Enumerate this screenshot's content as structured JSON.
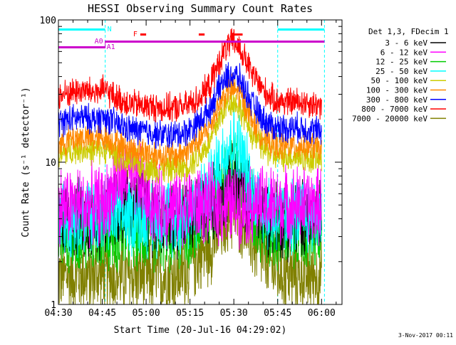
{
  "chart_data": {
    "type": "line",
    "title": "HESSI Observing Summary Count Rates",
    "xlabel": "Start Time (20-Jul-16 04:29:02)",
    "ylabel": "Count Rate (s⁻¹ detector⁻¹)",
    "yscale": "log",
    "ylim": [
      1,
      100
    ],
    "yticks": [
      {
        "value": 1,
        "label": "1"
      },
      {
        "value": 10,
        "label": "10"
      },
      {
        "value": 100,
        "label": "100"
      }
    ],
    "xlim_minutes": [
      0,
      97
    ],
    "xticks": [
      {
        "minute": 0,
        "label": "04:30"
      },
      {
        "minute": 15,
        "label": "04:45"
      },
      {
        "minute": 30,
        "label": "05:00"
      },
      {
        "minute": 45,
        "label": "05:15"
      },
      {
        "minute": 60,
        "label": "05:30"
      },
      {
        "minute": 75,
        "label": "05:45"
      },
      {
        "minute": 90,
        "label": "06:00"
      }
    ],
    "grid": false,
    "legend_header": "Det 1,3, FDecim 1",
    "legend_position": "right",
    "x": [
      0,
      4,
      8,
      12,
      16,
      20,
      24,
      28,
      32,
      36,
      40,
      44,
      48,
      52,
      54,
      56,
      58,
      60,
      62,
      64,
      66,
      70,
      74,
      78,
      82,
      86,
      90
    ],
    "series": [
      {
        "name": "3 - 6 keV",
        "color": "#000000",
        "values": [
          4,
          4,
          4,
          4,
          4,
          5,
          5,
          5,
          4,
          4,
          4,
          4,
          4.5,
          5,
          5.5,
          6,
          6.5,
          7,
          6.5,
          6,
          5,
          4.5,
          4,
          4,
          4,
          4,
          4
        ]
      },
      {
        "name": "6 - 12 keV",
        "color": "#ff00ff",
        "values": [
          5,
          5,
          5,
          5,
          5,
          7.5,
          8,
          7,
          5,
          5,
          5,
          5,
          5,
          5,
          5,
          5,
          5,
          5,
          5,
          5,
          5,
          5,
          5,
          5,
          5,
          5,
          5
        ]
      },
      {
        "name": "12 - 25 keV",
        "color": "#00cc00",
        "values": [
          3.2,
          3.2,
          3.2,
          3.2,
          3.2,
          3.2,
          3.2,
          3.2,
          3.2,
          3.2,
          3.2,
          3.2,
          3.8,
          4.5,
          5.5,
          7,
          8.5,
          9,
          8,
          6,
          4.5,
          3.5,
          3.2,
          3.2,
          3.2,
          3.2,
          3.2
        ]
      },
      {
        "name": "25 - 50 keV",
        "color": "#00ffff",
        "values": [
          4.2,
          4.2,
          4.2,
          4.2,
          4.2,
          4.2,
          4.2,
          4.2,
          4.2,
          4.2,
          4.2,
          4.2,
          5,
          6.5,
          8.5,
          11,
          13,
          14,
          12,
          9,
          6.5,
          4.8,
          4.2,
          4.2,
          4.2,
          4.2,
          4.2
        ]
      },
      {
        "name": "50 - 100 keV",
        "color": "#cccc00",
        "values": [
          11,
          12,
          12.5,
          12,
          12.5,
          11,
          10,
          9.5,
          9,
          9,
          9,
          9.5,
          11,
          14,
          18,
          22,
          26,
          27,
          24,
          20,
          16,
          12.5,
          11,
          11,
          11,
          10.5,
          10.5
        ]
      },
      {
        "name": "100 - 300 keV",
        "color": "#ff8800",
        "values": [
          13.5,
          14.5,
          15,
          14.5,
          15,
          13.5,
          12.5,
          12,
          11.5,
          11,
          11,
          12,
          14,
          18,
          23,
          28,
          32,
          33,
          30,
          25,
          20,
          15,
          13,
          13,
          13,
          13,
          12.5
        ]
      },
      {
        "name": "300 - 800 keV",
        "color": "#0000ff",
        "values": [
          19,
          20,
          20.5,
          20,
          20.5,
          18.5,
          17,
          16.5,
          16,
          15.5,
          15.5,
          16.5,
          19,
          24,
          30,
          36,
          40,
          41,
          38,
          32,
          26,
          20,
          17.5,
          17.5,
          17.5,
          17,
          16.5
        ]
      },
      {
        "name": "800 - 7000 keV",
        "color": "#ff0000",
        "values": [
          29,
          31,
          32,
          31,
          32,
          28,
          26,
          25,
          24.5,
          24,
          24,
          25,
          28,
          35,
          45,
          56,
          66,
          70,
          63,
          52,
          42,
          32,
          27,
          26.5,
          26.5,
          26,
          25
        ]
      },
      {
        "name": "7000 - 20000 keV",
        "color": "#808000",
        "values": [
          1.6,
          1.6,
          1.6,
          1.6,
          1.6,
          1.6,
          1.6,
          1.6,
          1.6,
          1.6,
          1.6,
          1.8,
          2.2,
          2.6,
          3,
          3.6,
          4.2,
          4.6,
          4.2,
          3.6,
          2.8,
          2.2,
          1.8,
          1.6,
          1.6,
          1.6,
          1.6
        ]
      }
    ],
    "annotations": {
      "night_bar_label": "N",
      "night_bar_color": "#00ffff",
      "night_bars": [
        [
          0,
          16
        ],
        [
          75,
          91
        ]
      ],
      "attenuator_labels": [
        "A0",
        "A1"
      ],
      "attenuator_color": "#cc00cc",
      "attenuator_switch_minute": 16,
      "flare_label": "F",
      "flare_color": "#ff0000",
      "flare_marks": [
        [
          28,
          30
        ],
        [
          48,
          50
        ],
        [
          60,
          63
        ]
      ],
      "dashed_line_minutes": [
        16,
        75,
        91
      ],
      "dashed_line_color": "#00ffff"
    }
  },
  "footer_date": "3-Nov-2017 00:11"
}
